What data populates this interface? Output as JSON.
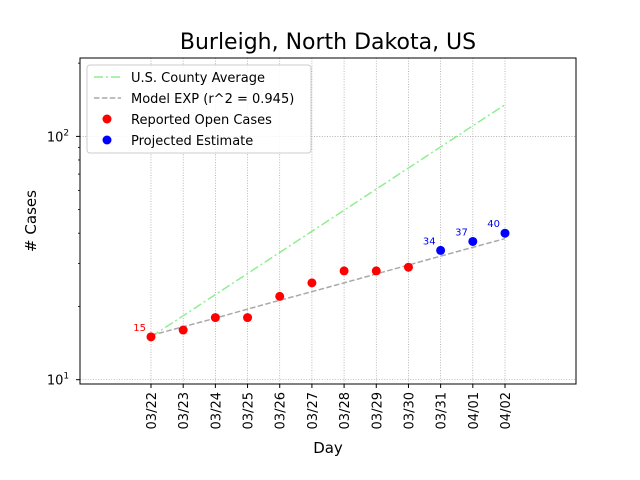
{
  "chart_data": {
    "type": "line",
    "title": "Burleigh, North Dakota, US",
    "xlabel": "Day",
    "ylabel": "# Cases",
    "yscale": "log",
    "ylim": [
      9.6,
      210
    ],
    "x_categories": [
      "03/22",
      "03/23",
      "03/24",
      "03/25",
      "03/26",
      "03/27",
      "03/28",
      "03/29",
      "03/30",
      "03/31",
      "04/01",
      "04/02"
    ],
    "yticks": [
      {
        "value": 10,
        "label": "10",
        "base": "10",
        "exp": "1"
      },
      {
        "value": 100,
        "label": "10^2",
        "base": "10",
        "exp": "2"
      }
    ],
    "grid": true,
    "legend_position": "upper-left",
    "series": [
      {
        "name": "U.S. County Average",
        "kind": "line",
        "style": "dashdot",
        "color": "#90ee90",
        "x": [
          "03/22",
          "04/02"
        ],
        "values": [
          15,
          135
        ]
      },
      {
        "name": "Model EXP (r^2 = 0.945)",
        "kind": "line",
        "style": "dashed",
        "color": "#a9a9a9",
        "x": [
          "03/22",
          "03/23",
          "03/24",
          "03/25",
          "03/26",
          "03/27",
          "03/28",
          "03/29",
          "03/30",
          "03/31",
          "04/01",
          "04/02"
        ],
        "values": [
          15.2,
          16.5,
          17.9,
          19.5,
          21.2,
          23.0,
          25.0,
          27.2,
          29.6,
          32.2,
          35.0,
          38.0
        ]
      },
      {
        "name": "Reported Open Cases",
        "kind": "scatter",
        "color": "#ff0000",
        "x": [
          "03/22",
          "03/23",
          "03/24",
          "03/25",
          "03/26",
          "03/27",
          "03/28",
          "03/29",
          "03/30"
        ],
        "values": [
          15,
          16,
          18,
          18,
          22,
          25,
          28,
          28,
          29
        ]
      },
      {
        "name": "Projected Estimate",
        "kind": "scatter",
        "color": "#0000ff",
        "x": [
          "03/31",
          "04/01",
          "04/02"
        ],
        "values": [
          34,
          37,
          40
        ]
      }
    ],
    "annotations": [
      {
        "x": "03/22",
        "value": 15,
        "text": "15",
        "color": "#ff0000"
      },
      {
        "x": "03/31",
        "value": 34,
        "text": "34",
        "color": "#0000ff"
      },
      {
        "x": "04/01",
        "value": 37,
        "text": "37",
        "color": "#0000ff"
      },
      {
        "x": "04/02",
        "value": 40,
        "text": "40",
        "color": "#0000ff"
      }
    ]
  }
}
